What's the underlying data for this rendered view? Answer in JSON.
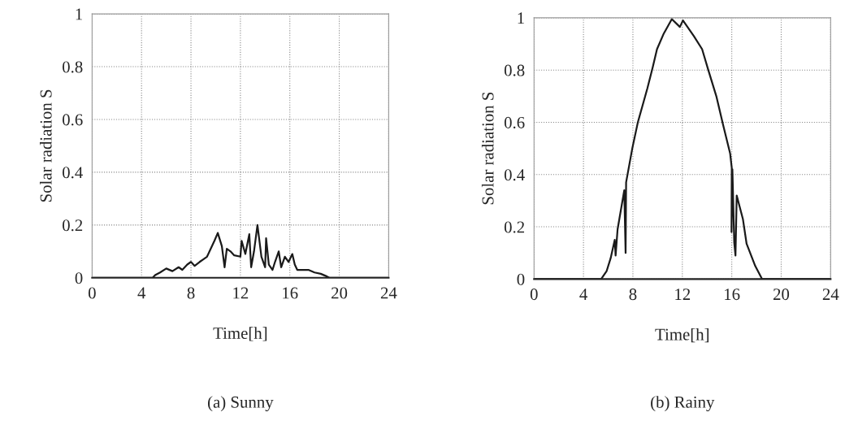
{
  "chart_data": [
    {
      "type": "line",
      "xlabel": "Time[h]",
      "ylabel": "Solar radiation S",
      "annotations": [
        "(a) Sunny"
      ],
      "xlim": [
        0,
        24
      ],
      "ylim": [
        0,
        1
      ],
      "xticks": [
        0,
        4,
        8,
        12,
        16,
        20,
        24
      ],
      "yticks": [
        0,
        0.2,
        0.4,
        0.6,
        0.8,
        1
      ],
      "grid": true,
      "line_style": "solid",
      "series": [
        {
          "color": "#1a1a1a",
          "x": [
            0,
            4.9,
            5.1,
            5.5,
            6.0,
            6.5,
            7.0,
            7.3,
            7.7,
            8.0,
            8.3,
            8.7,
            9.0,
            9.3,
            9.6,
            9.9,
            10.17,
            10.5,
            10.72,
            10.9,
            11.2,
            11.5,
            12.0,
            12.1,
            12.4,
            12.72,
            12.87,
            13.1,
            13.38,
            13.7,
            14.0,
            14.08,
            14.3,
            14.6,
            14.8,
            15.1,
            15.3,
            15.6,
            15.9,
            16.2,
            16.4,
            16.6,
            17.0,
            17.5,
            18.0,
            18.5,
            19.0,
            19.2,
            24
          ],
          "values": [
            0,
            0,
            0.01,
            0.02,
            0.035,
            0.025,
            0.04,
            0.03,
            0.05,
            0.06,
            0.045,
            0.06,
            0.07,
            0.08,
            0.11,
            0.14,
            0.17,
            0.12,
            0.04,
            0.11,
            0.1,
            0.085,
            0.08,
            0.14,
            0.09,
            0.165,
            0.04,
            0.1,
            0.2,
            0.08,
            0.04,
            0.15,
            0.05,
            0.03,
            0.06,
            0.1,
            0.04,
            0.08,
            0.06,
            0.09,
            0.05,
            0.03,
            0.03,
            0.03,
            0.02,
            0.015,
            0.005,
            0,
            0
          ]
        }
      ]
    },
    {
      "type": "line",
      "xlabel": "Time[h]",
      "ylabel": "Solar radiation S",
      "annotations": [
        "(b) Rainy"
      ],
      "xlim": [
        0,
        24
      ],
      "ylim": [
        0,
        1
      ],
      "xticks": [
        0,
        4,
        8,
        12,
        16,
        20,
        24
      ],
      "yticks": [
        0,
        0.2,
        0.4,
        0.6,
        0.8,
        1
      ],
      "grid": true,
      "line_style": "solid",
      "series": [
        {
          "color": "#1a1a1a",
          "x": [
            0,
            5.43,
            5.87,
            6.2,
            6.53,
            6.6,
            6.76,
            7.3,
            7.41,
            7.45,
            7.95,
            8.4,
            9.17,
            9.6,
            9.95,
            10.5,
            11.15,
            11.8,
            12.05,
            12.93,
            13.6,
            14.1,
            14.75,
            15.3,
            15.87,
            16.0,
            15.98,
            16.05,
            16.2,
            16.3,
            16.4,
            16.9,
            17.2,
            17.9,
            18.45,
            24
          ],
          "values": [
            0,
            0,
            0.03,
            0.08,
            0.15,
            0.09,
            0.19,
            0.34,
            0.1,
            0.37,
            0.5,
            0.6,
            0.73,
            0.81,
            0.88,
            0.94,
            0.995,
            0.965,
            0.99,
            0.93,
            0.88,
            0.8,
            0.7,
            0.59,
            0.48,
            0.425,
            0.18,
            0.42,
            0.14,
            0.09,
            0.32,
            0.23,
            0.135,
            0.05,
            0,
            0
          ]
        }
      ]
    }
  ]
}
